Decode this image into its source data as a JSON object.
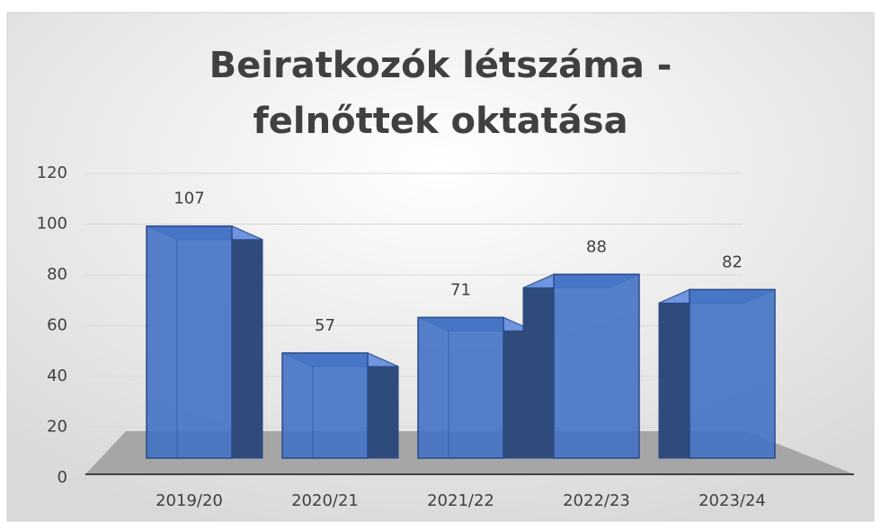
{
  "chart_data": {
    "type": "bar3d",
    "title": "Beiratkozók létszáma - felnőttek oktatása",
    "categories": [
      "2019/20",
      "2020/21",
      "2021/22",
      "2022/23",
      "2023/24"
    ],
    "values": [
      107,
      57,
      71,
      88,
      82
    ],
    "color": "#4472c4",
    "ylim": [
      0,
      120
    ],
    "yticks": [
      0,
      20,
      40,
      60,
      80,
      100,
      120
    ],
    "grid": true
  }
}
